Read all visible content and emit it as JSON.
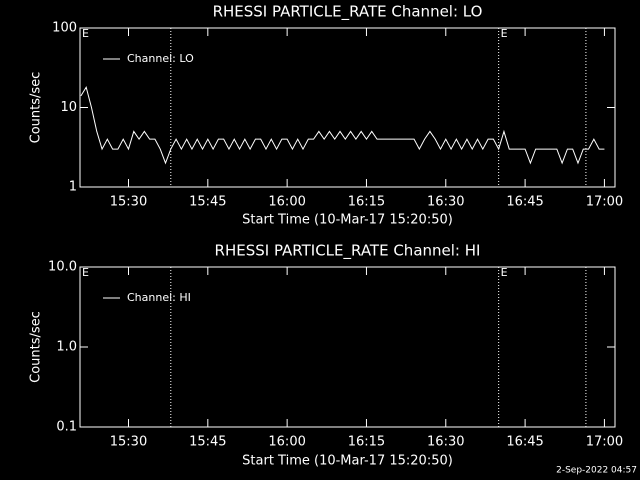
{
  "chart_data": [
    {
      "type": "line",
      "title": "RHESSI PARTICLE_RATE Channel: LO",
      "xlabel": "Start Time (10-Mar-17 15:20:50)",
      "ylabel": "Counts/sec",
      "xlim": [
        920.83,
        1022
      ],
      "ylim": [
        1,
        100
      ],
      "log_scale": true,
      "legend": "upper left",
      "xticks": [
        {
          "value": 930,
          "label": "15:30"
        },
        {
          "value": 945,
          "label": "15:45"
        },
        {
          "value": 960,
          "label": "16:00"
        },
        {
          "value": 975,
          "label": "16:15"
        },
        {
          "value": 990,
          "label": "16:30"
        },
        {
          "value": 1005,
          "label": "16:45"
        },
        {
          "value": 1020,
          "label": "17:00"
        }
      ],
      "yticks": [
        1,
        10,
        100
      ],
      "markers": [
        938,
        1000,
        1016.5
      ],
      "annotations": [
        {
          "text": "E",
          "x": 920.83
        },
        {
          "text": "E",
          "x": 1000
        }
      ],
      "series": [
        {
          "name": "Channel: LO",
          "color": "#ffffff",
          "x": [
            921,
            922,
            923,
            924,
            925,
            926,
            927,
            928,
            929,
            930,
            931,
            932,
            933,
            934,
            935,
            936,
            937,
            938,
            939,
            940,
            941,
            942,
            943,
            944,
            945,
            946,
            947,
            948,
            949,
            950,
            951,
            952,
            953,
            954,
            955,
            956,
            957,
            958,
            959,
            960,
            961,
            962,
            963,
            964,
            965,
            966,
            967,
            968,
            969,
            970,
            971,
            972,
            973,
            974,
            975,
            976,
            977,
            978,
            979,
            980,
            981,
            982,
            983,
            984,
            985,
            986,
            987,
            988,
            989,
            990,
            991,
            992,
            993,
            994,
            995,
            996,
            997,
            998,
            999,
            1000,
            1001,
            1002,
            1003,
            1004,
            1005,
            1006,
            1007,
            1008,
            1009,
            1010,
            1011,
            1012,
            1013,
            1014,
            1015,
            1016,
            1017,
            1018,
            1019,
            1020
          ],
          "values": [
            14,
            18,
            10,
            5,
            3,
            4,
            3,
            3,
            4,
            3,
            5,
            4,
            5,
            4,
            4,
            3,
            2,
            3,
            4,
            3,
            4,
            3,
            4,
            3,
            4,
            3,
            4,
            4,
            3,
            4,
            3,
            4,
            3,
            4,
            4,
            3,
            4,
            3,
            4,
            4,
            3,
            4,
            3,
            4,
            4,
            5,
            4,
            5,
            4,
            5,
            4,
            5,
            4,
            5,
            4,
            5,
            4,
            4,
            4,
            4,
            4,
            4,
            4,
            4,
            3,
            4,
            5,
            4,
            3,
            4,
            3,
            4,
            3,
            4,
            3,
            4,
            3,
            4,
            4,
            3,
            5,
            3,
            3,
            3,
            3,
            2,
            3,
            3,
            3,
            3,
            3,
            2,
            3,
            3,
            2,
            3,
            3,
            4,
            3,
            3
          ]
        }
      ]
    },
    {
      "type": "line",
      "title": "RHESSI PARTICLE_RATE Channel: HI",
      "xlabel": "Start Time (10-Mar-17 15:20:50)",
      "ylabel": "Counts/sec",
      "xlim": [
        920.83,
        1022
      ],
      "ylim": [
        0.1,
        10
      ],
      "log_scale": true,
      "legend": "upper left",
      "xticks": [
        {
          "value": 930,
          "label": "15:30"
        },
        {
          "value": 945,
          "label": "15:45"
        },
        {
          "value": 960,
          "label": "16:00"
        },
        {
          "value": 975,
          "label": "16:15"
        },
        {
          "value": 990,
          "label": "16:30"
        },
        {
          "value": 1005,
          "label": "16:45"
        },
        {
          "value": 1020,
          "label": "17:00"
        }
      ],
      "yticks": [
        0.1,
        {
          "value": 1,
          "label": "1.0"
        },
        {
          "value": 10,
          "label": "10.0"
        }
      ],
      "markers": [
        938,
        1000,
        1016.5
      ],
      "annotations": [
        {
          "text": "E",
          "x": 920.83
        },
        {
          "text": "E",
          "x": 1000
        }
      ],
      "series": [
        {
          "name": "Channel: HI",
          "color": "#ffffff",
          "x": [],
          "values": []
        }
      ]
    }
  ],
  "footer": "2-Sep-2022 04:57"
}
